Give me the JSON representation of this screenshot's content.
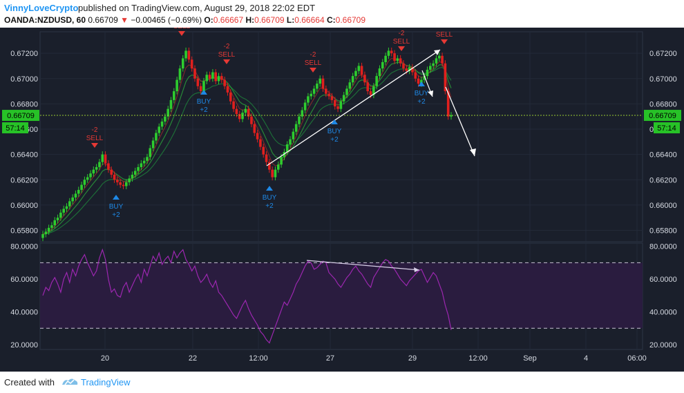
{
  "header": {
    "author": "VinnyLoveCrypto",
    "published": "published on TradingView.com, August 29, 2018 22:02 EDT",
    "symbol": "OANDA:NZDUSD, 60",
    "last": "0.66709",
    "change": "−0.00465 (−0.69%)",
    "o_label": "O:",
    "o_value": "0.66667",
    "h_label": "H:",
    "h_value": "0.66709",
    "l_label": "L:",
    "l_value": "0.66664",
    "c_label": "C:",
    "c_value": "0.66709"
  },
  "footer": {
    "created": "Created with",
    "brand": "TradingView"
  },
  "colors": {
    "background": "#1a1f2b",
    "bull": "#2ecc2e",
    "bear": "#e0201e",
    "rsi_line": "#9c27b0",
    "rsi_band": "#2a1c3f",
    "price_line": "#9acd32",
    "buy": "#1e88e5",
    "sell": "#e53935",
    "annotation": "#ffffff"
  },
  "chart_data": [
    {
      "type": "candlestick",
      "panel": "price",
      "y_ticks": [
        "0.67200",
        "0.67000",
        "0.66800",
        "0.66600",
        "0.66400",
        "0.66200",
        "0.66000",
        "0.65800"
      ],
      "x_ticks": [
        "20",
        "22",
        "12:00",
        "27",
        "29",
        "12:00",
        "Sep",
        "4",
        "06:00"
      ],
      "ylim": [
        0.6571,
        0.6737
      ],
      "current_price": 0.66709,
      "current_price_label": "0.66709",
      "countdown": "57:14",
      "closes": [
        0.6577,
        0.6579,
        0.6582,
        0.6584,
        0.6588,
        0.659,
        0.6594,
        0.6597,
        0.6599,
        0.6603,
        0.6606,
        0.6609,
        0.6612,
        0.6616,
        0.662,
        0.6622,
        0.6625,
        0.6628,
        0.663,
        0.6634,
        0.664,
        0.6633,
        0.6628,
        0.6624,
        0.662,
        0.6618,
        0.6616,
        0.6615,
        0.6618,
        0.6621,
        0.6624,
        0.6627,
        0.663,
        0.6633,
        0.6635,
        0.6638,
        0.6645,
        0.6651,
        0.6657,
        0.6662,
        0.6666,
        0.667,
        0.6676,
        0.6683,
        0.669,
        0.6699,
        0.6708,
        0.6716,
        0.6722,
        0.6715,
        0.6708,
        0.67,
        0.6694,
        0.669,
        0.6698,
        0.6703,
        0.67,
        0.6705,
        0.6698,
        0.6702,
        0.6699,
        0.6694,
        0.6689,
        0.6682,
        0.6676,
        0.6672,
        0.6668,
        0.6673,
        0.6676,
        0.667,
        0.6664,
        0.6657,
        0.6652,
        0.6646,
        0.664,
        0.6634,
        0.6628,
        0.6622,
        0.6628,
        0.6632,
        0.6638,
        0.6642,
        0.6648,
        0.6652,
        0.6658,
        0.6664,
        0.667,
        0.6675,
        0.6681,
        0.6686,
        0.6688,
        0.6692,
        0.6696,
        0.67,
        0.6692,
        0.6688,
        0.6686,
        0.6683,
        0.6678,
        0.6676,
        0.6682,
        0.6687,
        0.6692,
        0.6697,
        0.6702,
        0.6706,
        0.671,
        0.6703,
        0.6697,
        0.669,
        0.6687,
        0.6694,
        0.6702,
        0.6708,
        0.6713,
        0.6718,
        0.6722,
        0.672,
        0.6714,
        0.6716,
        0.6712,
        0.6708,
        0.6706,
        0.6709,
        0.6705,
        0.67,
        0.6696,
        0.6699,
        0.6702,
        0.6707,
        0.671,
        0.6712,
        0.6716,
        0.6718,
        0.6712,
        0.669,
        0.667,
        0.6671
      ]
    },
    {
      "type": "line",
      "panel": "rsi",
      "y_ticks": [
        "80.0000",
        "60.0000",
        "40.0000",
        "20.0000"
      ],
      "ylim": [
        17,
        82
      ],
      "bands": [
        30,
        70
      ],
      "values": [
        50,
        55,
        53,
        58,
        61,
        57,
        52,
        60,
        64,
        58,
        66,
        62,
        68,
        72,
        75,
        70,
        66,
        62,
        65,
        73,
        78,
        72,
        60,
        52,
        54,
        50,
        49,
        55,
        58,
        52,
        56,
        60,
        63,
        58,
        66,
        62,
        68,
        74,
        71,
        76,
        69,
        72,
        74,
        70,
        77,
        73,
        76,
        78,
        72,
        69,
        65,
        68,
        62,
        58,
        60,
        63,
        58,
        55,
        59,
        52,
        50,
        47,
        44,
        41,
        38,
        36,
        40,
        44,
        47,
        42,
        38,
        35,
        32,
        28,
        26,
        23,
        21,
        26,
        31,
        36,
        41,
        46,
        44,
        48,
        52,
        57,
        60,
        64,
        68,
        71,
        70,
        66,
        67,
        69,
        71,
        70,
        64,
        62,
        60,
        57,
        55,
        58,
        61,
        63,
        66,
        68,
        65,
        63,
        60,
        57,
        55,
        61,
        64,
        67,
        70,
        72,
        71,
        68,
        66,
        63,
        60,
        58,
        56,
        59,
        61,
        63,
        65,
        66,
        62,
        58,
        61,
        64,
        62,
        57,
        52,
        44,
        38,
        29
      ]
    },
    {
      "type": "annotations",
      "panel": "price",
      "markers": [
        {
          "kind": "sell",
          "label": "SELL",
          "sub": "-2"
        },
        {
          "kind": "sell",
          "label": "SELL",
          "sub": ""
        },
        {
          "kind": "sell",
          "label": "SELL",
          "sub": "-2"
        },
        {
          "kind": "sell",
          "label": "SELL",
          "sub": "-2"
        },
        {
          "kind": "sell",
          "label": "SELL",
          "sub": "-2"
        },
        {
          "kind": "sell",
          "label": "SELL",
          "sub": ""
        },
        {
          "kind": "buy",
          "label": "BUY",
          "sub": "+2"
        },
        {
          "kind": "buy",
          "label": "BUY",
          "sub": "+2"
        },
        {
          "kind": "buy",
          "label": "BUY",
          "sub": "+2"
        },
        {
          "kind": "buy",
          "label": "BUY",
          "sub": "+2"
        },
        {
          "kind": "buy",
          "label": "BUY",
          "sub": "+2"
        }
      ]
    }
  ]
}
